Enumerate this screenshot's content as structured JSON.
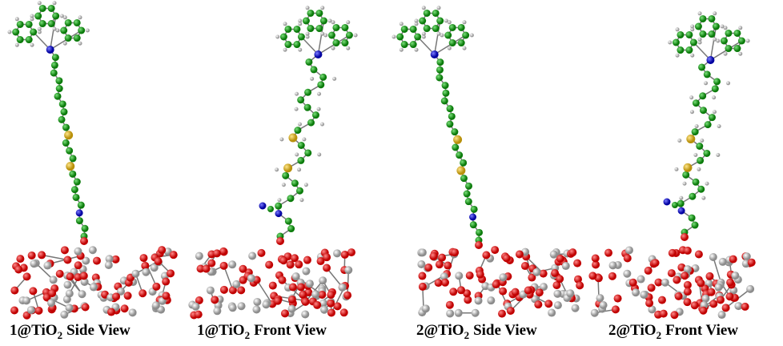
{
  "panels": [
    {
      "formula": "1@TiO",
      "subscript": "2",
      "view": "Side View"
    },
    {
      "formula": "1@TiO",
      "subscript": "2",
      "view": "Front View"
    },
    {
      "formula": "2@TiO",
      "subscript": "2",
      "view": "Side View"
    },
    {
      "formula": "2@TiO",
      "subscript": "2",
      "view": "Front View"
    }
  ]
}
